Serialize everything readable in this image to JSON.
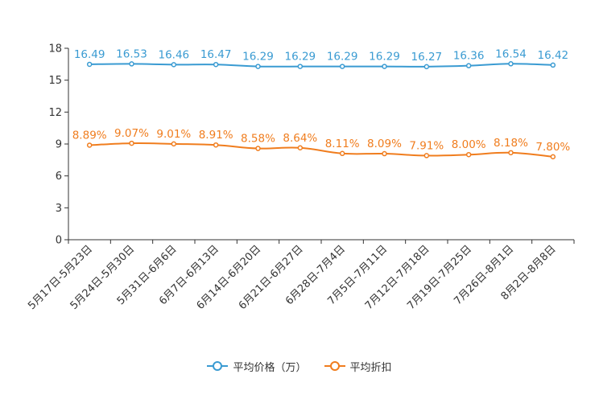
{
  "chart_data": {
    "type": "line",
    "title": "",
    "xlabel": "",
    "ylabel": "",
    "ylim": [
      0,
      18
    ],
    "yticks": [
      0,
      3,
      6,
      9,
      12,
      15,
      18
    ],
    "grid": false,
    "legend_position": "bottom-center",
    "categories": [
      "5月17日-5月23日",
      "5月24日-5月30日",
      "5月31日-6月6日",
      "6月7日-6月13日",
      "6月14日-6月20日",
      "6月21日-6月27日",
      "6月28日-7月4日",
      "7月5日-7月11日",
      "7月12日-7月18日",
      "7月19日-7月25日",
      "7月26日-8月1日",
      "8月2日-8月8日"
    ],
    "series": [
      {
        "name": "平均价格（万）",
        "color": "#3a9bd2",
        "values": [
          16.49,
          16.53,
          16.46,
          16.47,
          16.29,
          16.29,
          16.29,
          16.29,
          16.27,
          16.36,
          16.54,
          16.42
        ],
        "labels": [
          "16.49",
          "16.53",
          "16.46",
          "16.47",
          "16.29",
          "16.29",
          "16.29",
          "16.29",
          "16.27",
          "16.36",
          "16.54",
          "16.42"
        ]
      },
      {
        "name": "平均折扣",
        "color": "#f07d1e",
        "values": [
          8.89,
          9.07,
          9.01,
          8.91,
          8.58,
          8.64,
          8.11,
          8.09,
          7.91,
          8.0,
          8.18,
          7.8
        ],
        "labels": [
          "8.89%",
          "9.07%",
          "9.01%",
          "8.91%",
          "8.58%",
          "8.64%",
          "8.11%",
          "8.09%",
          "7.91%",
          "8.00%",
          "8.18%",
          "7.80%"
        ]
      }
    ]
  }
}
